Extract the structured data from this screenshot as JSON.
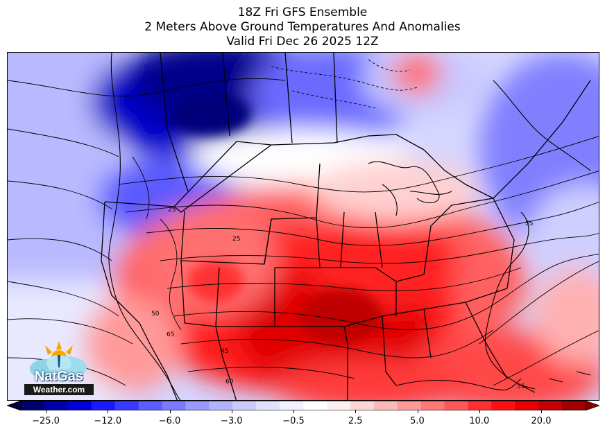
{
  "title_lines": [
    "18Z Fri GFS Ensemble",
    "2 Meters Above Ground Temperatures And Anomalies",
    "Valid Fri Dec 26 2025 12Z"
  ],
  "logo": {
    "name": "NatGas",
    "site": "Weather.com"
  },
  "colorbar": {
    "tick_labels": [
      "−25.0",
      "−12.0",
      "−6.0",
      "−3.0",
      "−0.5",
      "2.5",
      "5.0",
      "10.0",
      "20.0"
    ],
    "colors": [
      "#00003a",
      "#000070",
      "#0000a8",
      "#0000d8",
      "#1a1aff",
      "#3a3aff",
      "#5c5cff",
      "#7a7aff",
      "#9898ff",
      "#b2b2ff",
      "#cacaff",
      "#e0e0ff",
      "#f2f2ff",
      "#ffffff",
      "#fff0f0",
      "#ffd6d6",
      "#ffb8b8",
      "#ff9898",
      "#ff7878",
      "#ff5858",
      "#ff3030",
      "#ff1010",
      "#e80000",
      "#c40000",
      "#a00000",
      "#800000"
    ],
    "extend": "both"
  },
  "contour_labels": [
    "25",
    "25",
    "55",
    "50",
    "65",
    "45",
    "60",
    "55"
  ],
  "colors": {
    "cold": "#0000ff",
    "warm": "#ff0000",
    "neutral": "#ffffff"
  }
}
